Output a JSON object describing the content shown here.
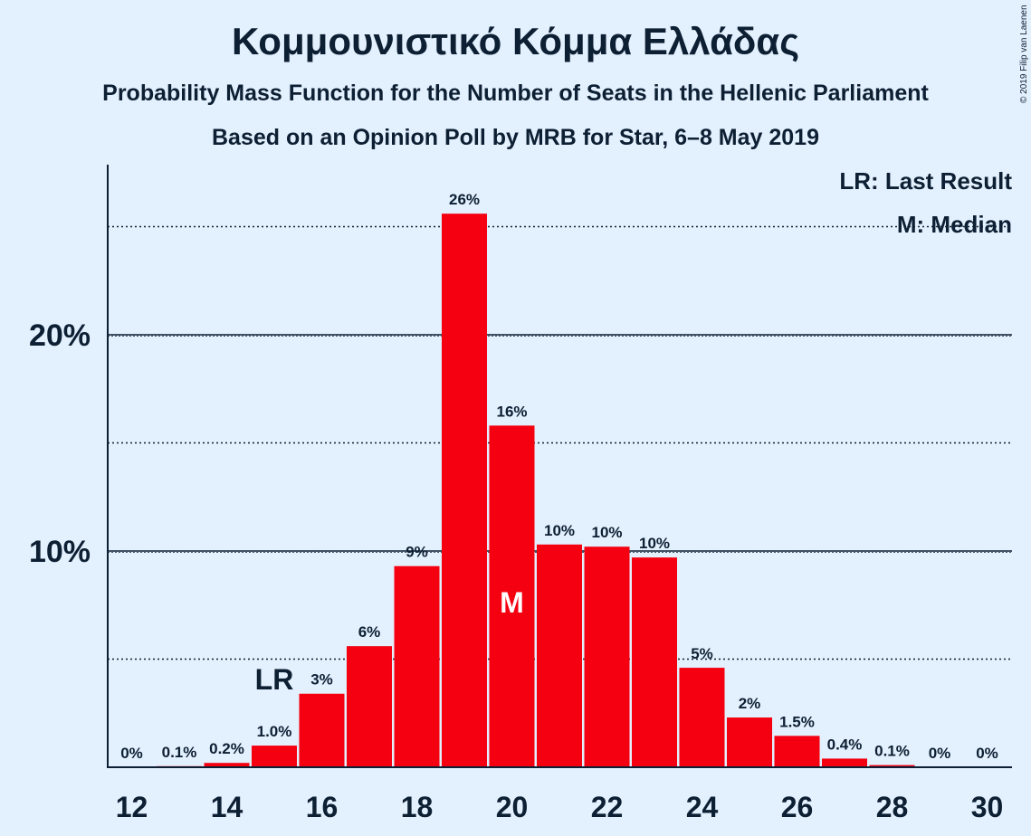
{
  "title": "Κομμουνιστικό Κόμμα Ελλάδας",
  "subtitle": "Probability Mass Function for the Number of Seats in the Hellenic Parliament",
  "source": "Based on an Opinion Poll by MRB for Star, 6–8 May 2019",
  "copyright": "© 2019 Filip van Laenen",
  "colors": {
    "bar": "#f40010",
    "background": "#e3f0fd",
    "text": "#0d1f33"
  },
  "legend": {
    "lr": "LR: Last Result",
    "m": "M: Median"
  },
  "chart_data": {
    "type": "bar",
    "categories": [
      12,
      13,
      14,
      15,
      16,
      17,
      18,
      19,
      20,
      21,
      22,
      23,
      24,
      25,
      26,
      27,
      28,
      29,
      30
    ],
    "values": [
      0,
      0.05,
      0.2,
      1.0,
      3.4,
      5.6,
      9.3,
      25.6,
      15.8,
      10.3,
      10.2,
      9.7,
      4.6,
      2.3,
      1.45,
      0.4,
      0.1,
      0,
      0
    ],
    "data_labels": [
      "0%",
      "0.1%",
      "0.2%",
      "1.0%",
      "3%",
      "6%",
      "9%",
      "26%",
      "16%",
      "10%",
      "10%",
      "10%",
      "5%",
      "2%",
      "1.5%",
      "0.4%",
      "0.1%",
      "0%",
      "0%"
    ],
    "x_tick_labels": [
      "12",
      "14",
      "16",
      "18",
      "20",
      "22",
      "24",
      "26",
      "28",
      "30"
    ],
    "y_tick_labels": [
      "10%",
      "20%"
    ],
    "ylim": [
      0,
      27.8
    ],
    "major_gridlines": [
      10,
      20
    ],
    "minor_gridlines": [
      5,
      15,
      25
    ],
    "last_result_seat": 15,
    "last_result_label": "LR",
    "median_seat": 20,
    "median_label": "M",
    "legend_position": "top-right"
  }
}
